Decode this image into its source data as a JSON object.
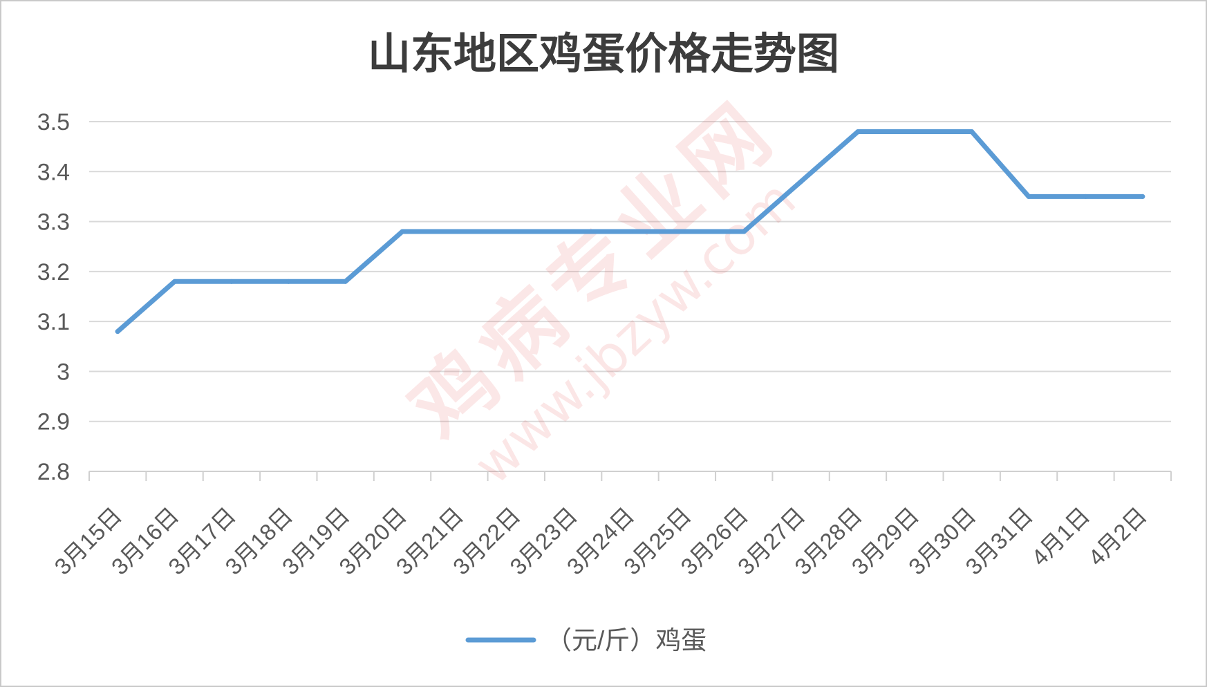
{
  "chart_data": {
    "type": "line",
    "title": "山东地区鸡蛋价格走势图",
    "xlabel": "",
    "ylabel": "",
    "categories": [
      "3月15日",
      "3月16日",
      "3月17日",
      "3月18日",
      "3月19日",
      "3月20日",
      "3月21日",
      "3月22日",
      "3月23日",
      "3月24日",
      "3月25日",
      "3月26日",
      "3月27日",
      "3月28日",
      "3月29日",
      "3月30日",
      "3月31日",
      "4月1日",
      "4月2日"
    ],
    "series": [
      {
        "name": "（元/斤）鸡蛋",
        "values": [
          3.08,
          3.18,
          3.18,
          3.18,
          3.18,
          3.28,
          3.28,
          3.28,
          3.28,
          3.28,
          3.28,
          3.28,
          3.38,
          3.48,
          3.48,
          3.48,
          3.35,
          3.35,
          3.35
        ]
      }
    ],
    "ylim": [
      2.8,
      3.5
    ],
    "ytick_labels": [
      "2.8",
      "2.9",
      "3",
      "3.1",
      "3.2",
      "3.3",
      "3.4",
      "3.5"
    ],
    "grid": true,
    "legend": "bottom"
  },
  "colors": {
    "series": "#5B9BD5",
    "grid": "#D9D9D9",
    "axis": "#D0D0D0",
    "text": "#595959",
    "border": "#C9C9C9"
  },
  "watermark": {
    "text": "鸡病专业网",
    "url": "www.jbzyw.com"
  }
}
